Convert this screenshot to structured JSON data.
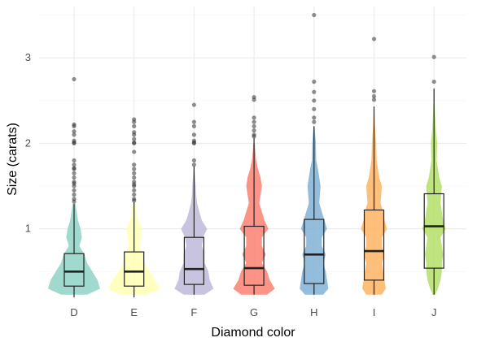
{
  "chart_data": {
    "type": "violin",
    "xlabel": "Diamond color",
    "ylabel": "Size (carats)",
    "categories": [
      "D",
      "E",
      "F",
      "G",
      "H",
      "I",
      "J"
    ],
    "ylim": [
      0.18,
      3.6
    ],
    "yticks": [
      1,
      2,
      3
    ],
    "grid": true,
    "colors": [
      "#8fd3c7",
      "#ffffb3",
      "#bebada",
      "#fb8072",
      "#80b1d3",
      "#fdb462",
      "#b3de69"
    ],
    "box": [
      {
        "category": "D",
        "min": 0.2,
        "q1": 0.33,
        "median": 0.5,
        "q3": 0.71,
        "max": 1.29
      },
      {
        "category": "E",
        "min": 0.2,
        "q1": 0.33,
        "median": 0.5,
        "q3": 0.73,
        "max": 1.31
      },
      {
        "category": "F",
        "min": 0.23,
        "q1": 0.35,
        "median": 0.53,
        "q3": 0.9,
        "max": 1.73
      },
      {
        "category": "G",
        "min": 0.23,
        "q1": 0.34,
        "median": 0.54,
        "q3": 1.03,
        "max": 2.06
      },
      {
        "category": "H",
        "min": 0.23,
        "q1": 0.36,
        "median": 0.7,
        "q3": 1.11,
        "max": 2.2
      },
      {
        "category": "I",
        "min": 0.23,
        "q1": 0.4,
        "median": 0.74,
        "q3": 1.22,
        "max": 2.43
      },
      {
        "category": "J",
        "min": 0.23,
        "q1": 0.54,
        "median": 1.03,
        "q3": 1.41,
        "max": 2.64
      }
    ],
    "outliers": [
      [
        2.75,
        2.22,
        2.2,
        2.14,
        2.1,
        2.03,
        2.01,
        2.0,
        1.8,
        1.75,
        1.71,
        1.7,
        1.65,
        1.6,
        1.55,
        1.53,
        1.5,
        1.45,
        1.4,
        1.35,
        1.32
      ],
      [
        2.28,
        2.25,
        2.2,
        2.13,
        2.1,
        2.05,
        2.01,
        2.0,
        1.9,
        1.75,
        1.7,
        1.65,
        1.6,
        1.55,
        1.52,
        1.5,
        1.45,
        1.4,
        1.35,
        1.33
      ],
      [
        2.45,
        2.25,
        2.2,
        2.1,
        2.03,
        2.01,
        2.0,
        1.8,
        1.75
      ],
      [
        2.54,
        2.51,
        2.3,
        2.25,
        2.2,
        2.15,
        2.1,
        2.08
      ],
      [
        3.5,
        2.72,
        2.6,
        2.5,
        2.4,
        2.3,
        2.25
      ],
      [
        3.22,
        2.61,
        2.55,
        2.51
      ],
      [
        3.01,
        2.72
      ]
    ],
    "violin_density": [
      [
        [
          0.23,
          0.5
        ],
        [
          0.3,
          1.0
        ],
        [
          0.4,
          0.9
        ],
        [
          0.5,
          0.7
        ],
        [
          0.6,
          0.5
        ],
        [
          0.7,
          0.4
        ],
        [
          0.8,
          0.2
        ],
        [
          0.9,
          0.3
        ],
        [
          1.0,
          0.25
        ],
        [
          1.1,
          0.15
        ],
        [
          1.2,
          0.1
        ],
        [
          1.3,
          0.05
        ]
      ],
      [
        [
          0.23,
          0.5
        ],
        [
          0.3,
          1.0
        ],
        [
          0.4,
          0.8
        ],
        [
          0.5,
          0.6
        ],
        [
          0.6,
          0.4
        ],
        [
          0.7,
          0.35
        ],
        [
          0.8,
          0.2
        ],
        [
          0.9,
          0.25
        ],
        [
          1.0,
          0.3
        ],
        [
          1.1,
          0.15
        ],
        [
          1.2,
          0.1
        ],
        [
          1.3,
          0.05
        ]
      ],
      [
        [
          0.23,
          0.4
        ],
        [
          0.3,
          0.75
        ],
        [
          0.4,
          0.6
        ],
        [
          0.5,
          0.55
        ],
        [
          0.6,
          0.4
        ],
        [
          0.7,
          0.4
        ],
        [
          0.8,
          0.3
        ],
        [
          0.9,
          0.35
        ],
        [
          1.0,
          0.5
        ],
        [
          1.1,
          0.3
        ],
        [
          1.2,
          0.2
        ],
        [
          1.3,
          0.12
        ],
        [
          1.4,
          0.08
        ],
        [
          1.5,
          0.07
        ],
        [
          1.6,
          0.04
        ],
        [
          1.7,
          0.02
        ]
      ],
      [
        [
          0.23,
          0.5
        ],
        [
          0.3,
          0.8
        ],
        [
          0.4,
          0.6
        ],
        [
          0.5,
          0.5
        ],
        [
          0.6,
          0.3
        ],
        [
          0.7,
          0.45
        ],
        [
          0.8,
          0.3
        ],
        [
          0.9,
          0.3
        ],
        [
          1.0,
          0.55
        ],
        [
          1.1,
          0.4
        ],
        [
          1.2,
          0.3
        ],
        [
          1.3,
          0.2
        ],
        [
          1.5,
          0.3
        ],
        [
          1.6,
          0.25
        ],
        [
          1.7,
          0.15
        ],
        [
          1.8,
          0.08
        ],
        [
          1.9,
          0.05
        ],
        [
          2.0,
          0.03
        ]
      ],
      [
        [
          0.23,
          0.35
        ],
        [
          0.3,
          0.55
        ],
        [
          0.4,
          0.5
        ],
        [
          0.5,
          0.45
        ],
        [
          0.6,
          0.35
        ],
        [
          0.7,
          0.45
        ],
        [
          0.8,
          0.3
        ],
        [
          0.9,
          0.3
        ],
        [
          1.0,
          0.5
        ],
        [
          1.1,
          0.4
        ],
        [
          1.2,
          0.3
        ],
        [
          1.3,
          0.2
        ],
        [
          1.5,
          0.25
        ],
        [
          1.7,
          0.15
        ],
        [
          1.8,
          0.08
        ],
        [
          2.0,
          0.07
        ],
        [
          2.2,
          0.02
        ]
      ],
      [
        [
          0.23,
          0.3
        ],
        [
          0.3,
          0.45
        ],
        [
          0.4,
          0.4
        ],
        [
          0.5,
          0.35
        ],
        [
          0.6,
          0.3
        ],
        [
          0.7,
          0.4
        ],
        [
          0.8,
          0.3
        ],
        [
          0.9,
          0.3
        ],
        [
          1.0,
          0.5
        ],
        [
          1.1,
          0.4
        ],
        [
          1.2,
          0.35
        ],
        [
          1.3,
          0.25
        ],
        [
          1.5,
          0.3
        ],
        [
          1.6,
          0.2
        ],
        [
          1.8,
          0.1
        ],
        [
          2.0,
          0.08
        ],
        [
          2.2,
          0.03
        ],
        [
          2.4,
          0.01
        ]
      ],
      [
        [
          0.23,
          0.05
        ],
        [
          0.3,
          0.15
        ],
        [
          0.4,
          0.25
        ],
        [
          0.5,
          0.3
        ],
        [
          0.6,
          0.3
        ],
        [
          0.7,
          0.35
        ],
        [
          0.8,
          0.3
        ],
        [
          0.9,
          0.25
        ],
        [
          1.0,
          0.45
        ],
        [
          1.1,
          0.35
        ],
        [
          1.2,
          0.3
        ],
        [
          1.3,
          0.25
        ],
        [
          1.5,
          0.3
        ],
        [
          1.6,
          0.2
        ],
        [
          1.8,
          0.1
        ],
        [
          2.0,
          0.12
        ],
        [
          2.2,
          0.06
        ],
        [
          2.4,
          0.03
        ],
        [
          2.6,
          0.01
        ]
      ]
    ]
  }
}
